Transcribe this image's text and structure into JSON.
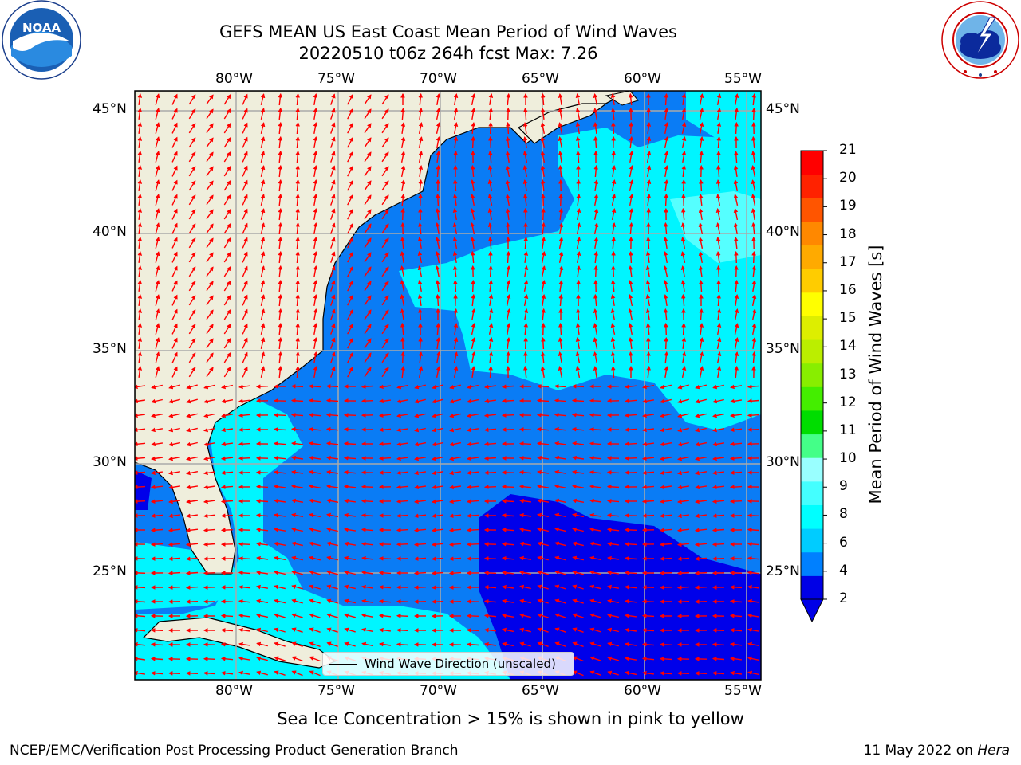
{
  "header": {
    "title_line1": "GEFS MEAN US East Coast Mean Period of Wind Waves",
    "title_line2": "20220510 t06z 264h fcst   Max: 7.26"
  },
  "logos": {
    "left": "noaa-logo",
    "right": "national-weather-service-logo",
    "noaa_text": "NOAA",
    "noaa_ring_text": "NATIONAL OCEANIC AND ATMOSPHERIC ADMINISTRATION · U.S. DEPARTMENT OF COMMERCE",
    "nws_ring_text": "NATIONAL WEATHER SERVICE"
  },
  "map": {
    "lon_ticks": [
      "80°W",
      "75°W",
      "70°W",
      "65°W",
      "60°W",
      "55°W"
    ],
    "lat_ticks": [
      "45°N",
      "40°N",
      "35°N",
      "30°N",
      "25°N"
    ],
    "land_color": "#efeedc",
    "vector_color": "#ff0000",
    "legend_label": "Wind Wave Direction (unscaled)",
    "grid": true
  },
  "colorbar": {
    "label": "Mean Period of Wind Waves [s]",
    "ticks": [
      "21",
      "20",
      "19",
      "18",
      "17",
      "16",
      "15",
      "14",
      "13",
      "12",
      "11",
      "10",
      "9",
      "8",
      "6",
      "4",
      "2"
    ],
    "colors": [
      "#0000e6",
      "#0080ff",
      "#00ccff",
      "#00ffff",
      "#44ffff",
      "#99ffff",
      "#44ff88",
      "#00dd00",
      "#44ee00",
      "#88ee00",
      "#bbee00",
      "#ddee00",
      "#ffff00",
      "#ffcc00",
      "#ffaa00",
      "#ff8800",
      "#ff5500",
      "#ff2200",
      "#ff0000"
    ]
  },
  "note": "Sea Ice Concentration > 15% is shown in pink to yellow",
  "footer": {
    "left": "NCEP/EMC/Verification Post Processing Product Generation Branch",
    "right_text": "11 May 2022 on ",
    "right_italic": "Hera"
  }
}
